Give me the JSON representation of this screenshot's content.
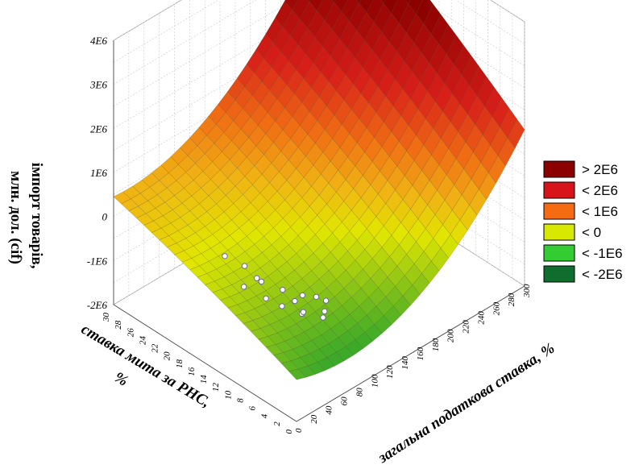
{
  "chart_data": {
    "type": "surface3d",
    "z_label": "імпорт товарів, млн. дол. (cif)",
    "x_label": "загальна податкова ставка, %",
    "y_label": "ставка мита за РНС, %",
    "z_ticks": [
      "4E6",
      "3E6",
      "2E6",
      "1E6",
      "0",
      "-1E6",
      "-2E6"
    ],
    "x_ticks": [
      "0",
      "20",
      "40",
      "60",
      "80",
      "100",
      "120",
      "140",
      "160",
      "180",
      "200",
      "220",
      "240",
      "260",
      "280",
      "300"
    ],
    "y_ticks": [
      "0",
      "2",
      "4",
      "6",
      "8",
      "10",
      "12",
      "14",
      "16",
      "18",
      "20",
      "22",
      "24",
      "26",
      "28",
      "30"
    ],
    "x_range": [
      0,
      300
    ],
    "y_range": [
      0,
      30
    ],
    "z_range": [
      -2000000,
      4000000
    ],
    "grid": true,
    "legend_position": "right",
    "legend": [
      {
        "label": "> 2E6",
        "color": "#8b0000"
      },
      {
        "label": "< 2E6",
        "color": "#d8141b"
      },
      {
        "label": "< 1E6",
        "color": "#f46b12"
      },
      {
        "label": "< 0",
        "color": "#d9e800"
      },
      {
        "label": "< -1E6",
        "color": "#33cc33"
      },
      {
        "label": "< -2E6",
        "color": "#0f6e2d"
      }
    ],
    "observed_points": [
      {
        "x": 40,
        "y": 10,
        "z": -500000
      },
      {
        "x": 50,
        "y": 12,
        "z": -400000
      },
      {
        "x": 60,
        "y": 14,
        "z": -600000
      },
      {
        "x": 70,
        "y": 11,
        "z": -700000
      },
      {
        "x": 80,
        "y": 9,
        "z": -750000
      },
      {
        "x": 45,
        "y": 8,
        "z": -550000
      },
      {
        "x": 55,
        "y": 6,
        "z": -650000
      },
      {
        "x": 65,
        "y": 7,
        "z": -800000
      },
      {
        "x": 75,
        "y": 5,
        "z": -850000
      },
      {
        "x": 85,
        "y": 6,
        "z": -900000
      },
      {
        "x": 90,
        "y": 8,
        "z": -800000
      },
      {
        "x": 35,
        "y": 13,
        "z": -450000
      },
      {
        "x": 60,
        "y": 16,
        "z": -500000
      },
      {
        "x": 50,
        "y": 18,
        "z": -350000
      },
      {
        "x": 95,
        "y": 7,
        "z": -850000
      },
      {
        "x": 70,
        "y": 9,
        "z": -780000
      }
    ]
  }
}
